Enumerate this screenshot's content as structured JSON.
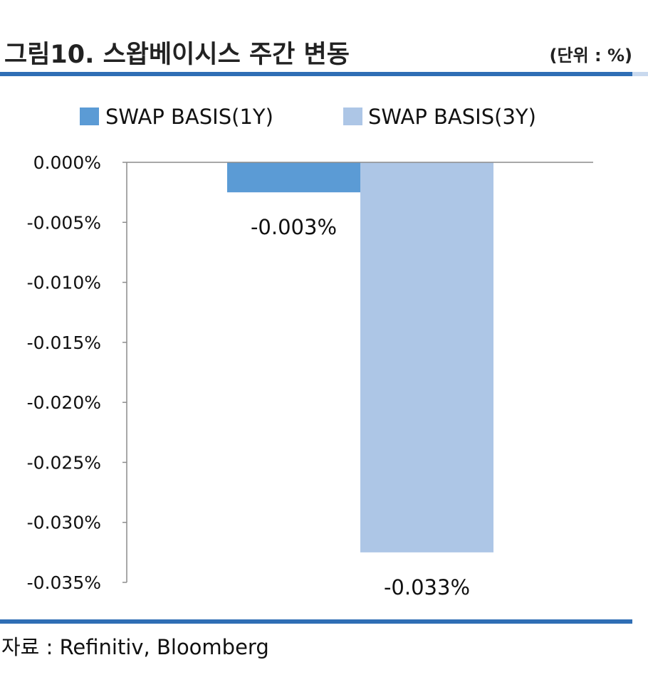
{
  "header": {
    "title": "그림10. 스왑베이시스 주간 변동",
    "unit": "(단위 : %)"
  },
  "footer": {
    "source": "자료 : Refinitiv, Bloomberg"
  },
  "colors": {
    "series_1y": "#5b9bd5",
    "series_3y": "#adc6e6",
    "rule": "#2f6eb5",
    "axis": "#8c8c8c"
  },
  "chart_data": {
    "type": "bar",
    "categories": [
      ""
    ],
    "series": [
      {
        "name": "SWAP BASIS(1Y)",
        "values": [
          -0.0025
        ],
        "data_label": "-0.003%"
      },
      {
        "name": "SWAP BASIS(3Y)",
        "values": [
          -0.0325
        ],
        "data_label": "-0.033%"
      }
    ],
    "ylim": [
      -0.035,
      0
    ],
    "yticks": [
      0,
      -0.005,
      -0.01,
      -0.015,
      -0.02,
      -0.025,
      -0.03,
      -0.035
    ],
    "ytick_labels": [
      "0.000%",
      "-0.005%",
      "-0.010%",
      "-0.015%",
      "-0.020%",
      "-0.025%",
      "-0.030%",
      "-0.035%"
    ],
    "legend_position": "top-center",
    "grid": false
  }
}
